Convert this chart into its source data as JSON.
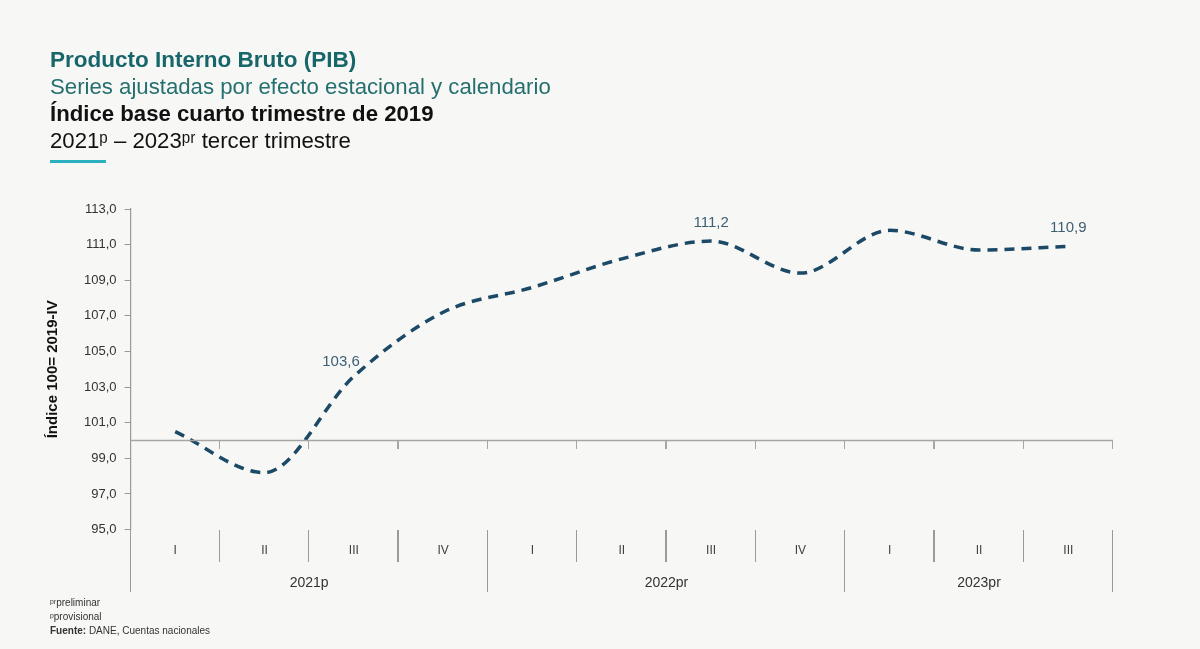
{
  "chart_data": {
    "type": "line",
    "title": "Producto Interno Bruto (PIB)",
    "subtitle": "Series ajustadas por efecto estacional y calendario\nÍndice base cuarto trimestre de 2019\n2021ᵖ – 2023ᵖʳ tercer trimestre",
    "ylabel": "Índice 100= 2019-IV",
    "categories": [
      "I",
      "II",
      "III",
      "IV",
      "I",
      "II",
      "III",
      "IV",
      "I",
      "II",
      "III"
    ],
    "values": [
      100.5,
      98.2,
      103.6,
      107.2,
      108.6,
      110.2,
      111.2,
      109.4,
      111.8,
      110.7,
      110.9
    ],
    "value_labels": [
      null,
      null,
      "103,6",
      null,
      null,
      null,
      "111,2",
      null,
      null,
      null,
      "110,9"
    ],
    "color": "#1c4966",
    "line_style": "dashed",
    "marker": "none",
    "ylim": [
      95,
      113
    ],
    "yticks": [
      {
        "value": 95,
        "label": "95,0"
      },
      {
        "value": 97,
        "label": "97,0"
      },
      {
        "value": 99,
        "label": "99,0"
      },
      {
        "value": 101,
        "label": "101,0"
      },
      {
        "value": 103,
        "label": "103,0"
      },
      {
        "value": 105,
        "label": "105,0"
      },
      {
        "value": 107,
        "label": "107,0"
      },
      {
        "value": 109,
        "label": "109,0"
      },
      {
        "value": 111,
        "label": "111,0"
      },
      {
        "value": 113,
        "label": "113,0"
      }
    ],
    "ref_lines": [
      {
        "axis": "y",
        "value": 100,
        "color": "#a6a6a6"
      }
    ],
    "annotations": [
      "2021p",
      "2022pr",
      "2023pr",
      "ᵖʳpreliminar",
      "ᵖprovisional",
      "Fuente: DANE, Cuentas nacionales"
    ]
  }
}
